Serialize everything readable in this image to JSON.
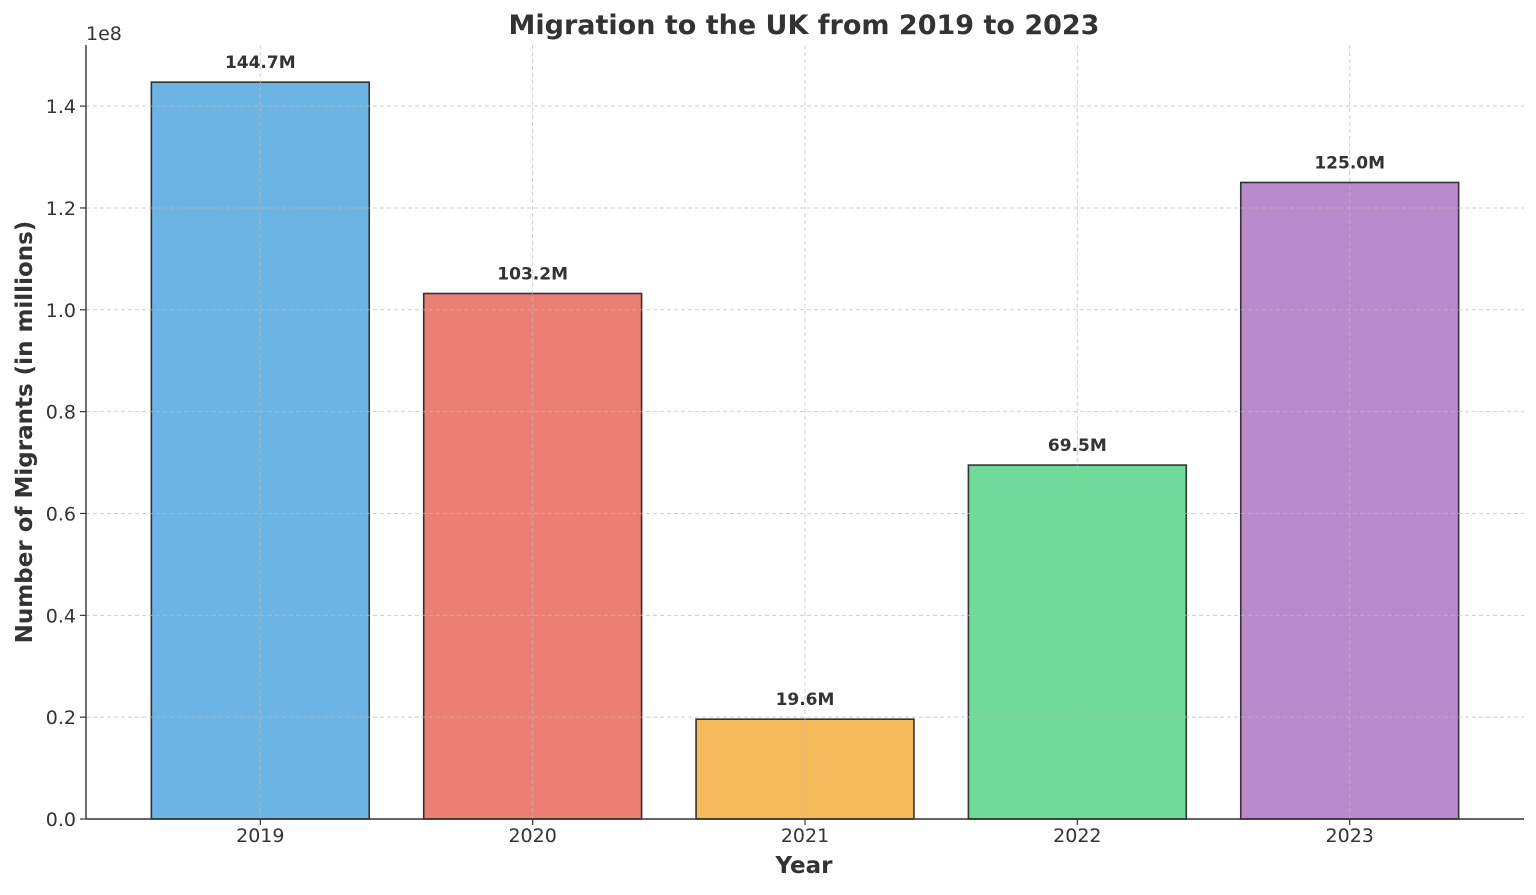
{
  "chart_data": {
    "type": "bar",
    "title": "Migration to the UK from 2019 to 2023",
    "xlabel": "Year",
    "ylabel": "Number of Migrants (in millions)",
    "y_offset_label": "1e8",
    "categories": [
      "2019",
      "2020",
      "2021",
      "2022",
      "2023"
    ],
    "values": [
      144700000,
      103200000,
      19600000,
      69500000,
      125000000
    ],
    "data_labels": [
      "144.7M",
      "103.2M",
      "19.6M",
      "69.5M",
      "125.0M"
    ],
    "colors": [
      "#6cb4e4",
      "#ec7f73",
      "#f4b95a",
      "#6fda9a",
      "#b98acb"
    ],
    "ylim": [
      0,
      152000000
    ],
    "yticks": [
      0,
      20000000,
      40000000,
      60000000,
      80000000,
      100000000,
      120000000,
      140000000
    ],
    "ytick_labels": [
      "0.0",
      "0.2",
      "0.4",
      "0.6",
      "0.8",
      "1.0",
      "1.2",
      "1.4"
    ],
    "grid": true,
    "grid_style": "dashed"
  }
}
